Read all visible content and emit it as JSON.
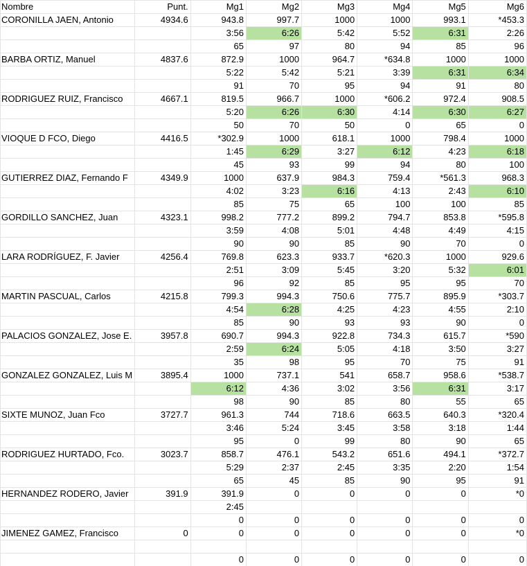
{
  "table": {
    "header": [
      "Nombre",
      "Punt.",
      "Mg1",
      "Mg2",
      "Mg3",
      "Mg4",
      "Mg5",
      "Mg6"
    ],
    "rows": [
      [
        "CORONILLA JAEN, Antonio",
        "4934.6",
        "943.8",
        "997.7",
        "1000",
        "1000",
        "993.1",
        "*453.3"
      ],
      [
        null,
        null,
        "3:56",
        {
          "text": "6:26",
          "fill": "#b7e1a1"
        },
        "5:42",
        "5:52",
        {
          "text": "6:31",
          "fill": "#b7e1a1"
        },
        "2:26"
      ],
      [
        null,
        null,
        "65",
        "97",
        "80",
        "94",
        "85",
        "96"
      ],
      [
        "BARBA ORTIZ, Manuel",
        "4837.6",
        "872.9",
        "1000",
        "964.7",
        "*634.8",
        "1000",
        "1000"
      ],
      [
        null,
        null,
        "5:22",
        "5:42",
        "5:21",
        "3:39",
        {
          "text": "6:31",
          "fill": "#b7e1a1"
        },
        {
          "text": "6:34",
          "fill": "#b7e1a1"
        }
      ],
      [
        null,
        null,
        "91",
        "70",
        "95",
        "94",
        "91",
        "80"
      ],
      [
        "RODRIGUEZ RUIZ, Francisco",
        "4667.1",
        "819.5",
        "966.7",
        "1000",
        "*606.2",
        "972.4",
        "908.5"
      ],
      [
        null,
        null,
        "5:20",
        {
          "text": "6:26",
          "fill": "#b7e1a1"
        },
        {
          "text": "6:30",
          "fill": "#b7e1a1"
        },
        "4:14",
        {
          "text": "6:30",
          "fill": "#b7e1a1"
        },
        {
          "text": "6:27",
          "fill": "#b7e1a1"
        }
      ],
      [
        null,
        null,
        "50",
        "70",
        "50",
        "0",
        "65",
        "0"
      ],
      [
        "VIOQUE D FCO, Diego",
        "4416.5",
        "*302.9",
        "1000",
        "618.1",
        "1000",
        "798.4",
        "1000"
      ],
      [
        null,
        null,
        "1:45",
        {
          "text": "6:29",
          "fill": "#b7e1a1"
        },
        "3:27",
        {
          "text": "6:12",
          "fill": "#b7e1a1"
        },
        "4:23",
        {
          "text": "6:18",
          "fill": "#b7e1a1"
        }
      ],
      [
        null,
        null,
        "45",
        "93",
        "99",
        "94",
        "80",
        "100"
      ],
      [
        "GUTIERREZ DIAZ, Fernando F",
        "4349.9",
        "1000",
        "637.9",
        "984.3",
        "759.4",
        "*561.3",
        "968.3"
      ],
      [
        null,
        null,
        "4:02",
        "3:23",
        {
          "text": "6:16",
          "fill": "#b7e1a1"
        },
        "4:13",
        "2:43",
        {
          "text": "6:10",
          "fill": "#b7e1a1"
        }
      ],
      [
        null,
        null,
        "85",
        "75",
        "65",
        "100",
        "100",
        "85"
      ],
      [
        "GORDILLO SANCHEZ, Juan",
        "4323.1",
        "998.2",
        "777.2",
        "899.2",
        "794.7",
        "853.8",
        "*595.8"
      ],
      [
        null,
        null,
        "3:59",
        "4:08",
        "5:01",
        "4:48",
        "4:49",
        "4:15"
      ],
      [
        null,
        null,
        "90",
        "90",
        "85",
        "90",
        "70",
        "0"
      ],
      [
        "LARA RODRÍGUEZ, F. Javier",
        "4256.4",
        "769.8",
        "623.3",
        "933.7",
        "*620.3",
        "1000",
        "929.6"
      ],
      [
        null,
        null,
        "2:51",
        "3:09",
        "5:45",
        "3:20",
        "5:32",
        {
          "text": "6:01",
          "fill": "#b7e1a1"
        }
      ],
      [
        null,
        null,
        "96",
        "92",
        "85",
        "95",
        "95",
        "70"
      ],
      [
        "MARTIN PASCUAL, Carlos",
        "4215.8",
        "799.3",
        "994.3",
        "750.6",
        "775.7",
        "895.9",
        "*303.7"
      ],
      [
        null,
        null,
        "4:54",
        {
          "text": "6:28",
          "fill": "#b7e1a1"
        },
        "4:25",
        "4:23",
        "4:55",
        "2:10"
      ],
      [
        null,
        null,
        "85",
        "90",
        "93",
        "93",
        "90",
        "0"
      ],
      [
        "PALACIOS GONZALEZ, Jose E.",
        "3957.8",
        "690.7",
        "994.3",
        "922.8",
        "734.3",
        "615.7",
        "*590"
      ],
      [
        null,
        null,
        "2:59",
        {
          "text": "6:24",
          "fill": "#b7e1a1"
        },
        "5:05",
        "4:18",
        "3:50",
        "3:27"
      ],
      [
        null,
        null,
        "35",
        "98",
        "95",
        "70",
        "75",
        "91"
      ],
      [
        "GONZALEZ GONZALEZ, Luis M",
        "3895.4",
        "1000",
        "737.1",
        "541",
        "658.7",
        "958.6",
        "*538.7"
      ],
      [
        null,
        null,
        {
          "text": "6:12",
          "fill": "#b7e1a1"
        },
        "4:36",
        "3:02",
        "3:56",
        {
          "text": "6:31",
          "fill": "#b7e1a1"
        },
        "3:17"
      ],
      [
        null,
        null,
        "98",
        "90",
        "85",
        "80",
        "55",
        "65"
      ],
      [
        "SIXTE MUNOZ, Juan Fco",
        "3727.7",
        "961.3",
        "744",
        "718.6",
        "663.5",
        "640.3",
        "*320.4"
      ],
      [
        null,
        null,
        "3:46",
        "5:24",
        "3:45",
        "3:58",
        "3:18",
        "1:44"
      ],
      [
        null,
        null,
        "95",
        "0",
        "99",
        "80",
        "90",
        "65"
      ],
      [
        "RODRIGUEZ HURTADO, Fco.",
        "3023.7",
        "858.7",
        "476.1",
        "543.2",
        "651.6",
        "494.1",
        "*372.7"
      ],
      [
        null,
        null,
        "5:29",
        "2:37",
        "2:45",
        "3:35",
        "2:20",
        "1:54"
      ],
      [
        null,
        null,
        "65",
        "45",
        "85",
        "90",
        "95",
        "91"
      ],
      [
        "HERNANDEZ RODERO, Javier",
        "391.9",
        "391.9",
        "0",
        "0",
        "0",
        "0",
        "*0"
      ],
      [
        null,
        null,
        "2:45",
        null,
        null,
        null,
        null,
        null
      ],
      [
        null,
        null,
        "0",
        "0",
        "0",
        "0",
        "0",
        "0"
      ],
      [
        "JIMENEZ GAMEZ, Francisco",
        "0",
        "0",
        "0",
        "0",
        "0",
        "0",
        "*0"
      ],
      [
        null,
        null,
        null,
        null,
        null,
        null,
        null,
        null
      ],
      [
        null,
        null,
        "0",
        "0",
        "0",
        "0",
        "0",
        "0"
      ]
    ]
  }
}
